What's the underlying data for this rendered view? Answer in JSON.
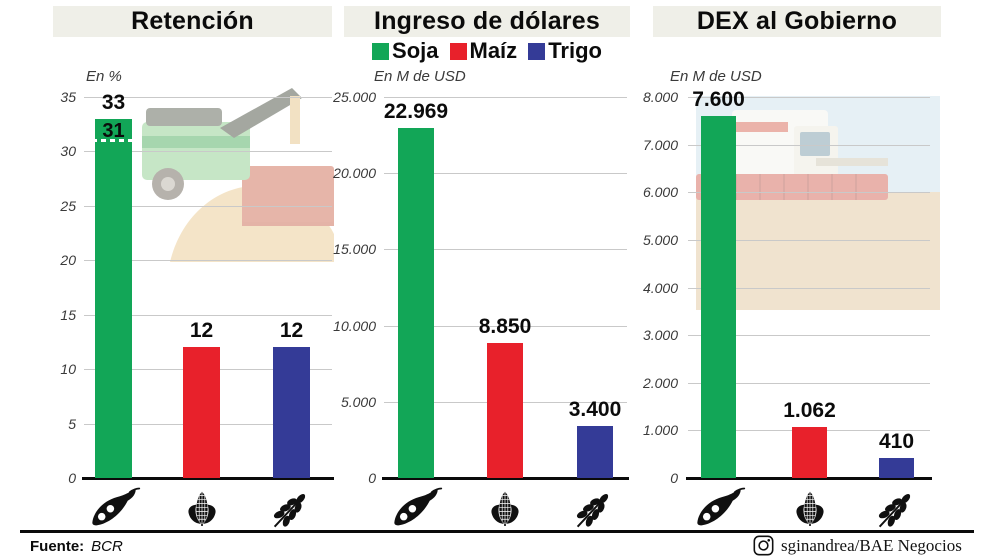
{
  "legend": {
    "items": [
      {
        "label": "Soja",
        "color": "#12A657",
        "icon": "soybean-pod-icon"
      },
      {
        "label": "Maíz",
        "color": "#E8212B",
        "icon": "corn-cob-icon"
      },
      {
        "label": "Trigo",
        "color": "#343B97",
        "icon": "wheat-ear-icon"
      }
    ]
  },
  "chart_data": [
    {
      "type": "bar",
      "title": "Retención",
      "unit_label": "En %",
      "categories": [
        "Soja",
        "Maíz",
        "Trigo"
      ],
      "category_icons": [
        "soybean-pod-icon",
        "corn-cob-icon",
        "wheat-ear-icon"
      ],
      "values": [
        33,
        12,
        12
      ],
      "value_labels": [
        "33",
        "12",
        "12"
      ],
      "bar_colors": [
        "#12A657",
        "#E8212B",
        "#343B97"
      ],
      "ylim": [
        0,
        35
      ],
      "yticks": [
        35,
        30,
        25,
        20,
        15,
        10,
        5,
        0
      ],
      "ytick_labels": [
        "35",
        "30",
        "25",
        "20",
        "15",
        "10",
        "5",
        "0"
      ],
      "grid": true,
      "legend_position": "none",
      "annotation": {
        "value": 31,
        "label": "31",
        "type": "white-dashed-line-inside-bar"
      }
    },
    {
      "type": "bar",
      "title": "Ingreso de dólares",
      "unit_label": "En M de USD",
      "categories": [
        "Soja",
        "Maíz",
        "Trigo"
      ],
      "category_icons": [
        "soybean-pod-icon",
        "corn-cob-icon",
        "wheat-ear-icon"
      ],
      "values": [
        22969,
        8850,
        3400
      ],
      "value_labels": [
        "22.969",
        "8.850",
        "3.400"
      ],
      "bar_colors": [
        "#12A657",
        "#E8212B",
        "#343B97"
      ],
      "ylim": [
        0,
        25000
      ],
      "yticks": [
        25000,
        20000,
        15000,
        10000,
        5000,
        0
      ],
      "ytick_labels": [
        "25.000",
        "20.000",
        "15.000",
        "10.000",
        "5.000",
        "0"
      ],
      "grid": true,
      "legend_position": "top"
    },
    {
      "type": "bar",
      "title": "DEX al Gobierno",
      "unit_label": "En M de USD",
      "categories": [
        "Soja",
        "Maíz",
        "Trigo"
      ],
      "category_icons": [
        "soybean-pod-icon",
        "corn-cob-icon",
        "wheat-ear-icon"
      ],
      "values": [
        7600,
        1062,
        410
      ],
      "value_labels": [
        "7.600",
        "1.062",
        "410"
      ],
      "bar_colors": [
        "#12A657",
        "#E8212B",
        "#343B97"
      ],
      "ylim": [
        0,
        8000
      ],
      "yticks": [
        8000,
        7000,
        6000,
        5000,
        4000,
        3000,
        2000,
        1000,
        0
      ],
      "ytick_labels": [
        "8.000",
        "7.000",
        "6.000",
        "5.000",
        "4.000",
        "3.000",
        "2.000",
        "1.000",
        "0"
      ],
      "grid": true,
      "legend_position": "none"
    }
  ],
  "footer": {
    "source_label": "Fuente:",
    "source_value": "BCR",
    "credit": "sginandrea/BAE Negocios",
    "credit_icon": "instagram-icon"
  },
  "style": {
    "title_bg": "#EFEFE8",
    "grid_color": "#C9C9C9",
    "axis_color": "#0B0B0B",
    "tick_text_color": "#3A3A3A"
  }
}
